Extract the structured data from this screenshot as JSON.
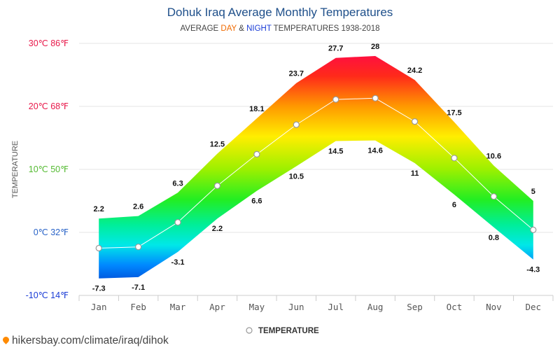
{
  "chart_data": {
    "type": "area",
    "title": "Dohuk Iraq Average Monthly Temperatures",
    "subtitle_prefix": "AVERAGE ",
    "subtitle_day": "DAY",
    "subtitle_amp": " & ",
    "subtitle_night": "NIGHT",
    "subtitle_suffix": " TEMPERATURES 1938-2018",
    "ylabel": "TEMPERATURE",
    "categories": [
      "Jan",
      "Feb",
      "Mar",
      "Apr",
      "May",
      "Jun",
      "Jul",
      "Aug",
      "Sep",
      "Oct",
      "Nov",
      "Dec"
    ],
    "series": [
      {
        "name": "DAY",
        "values": [
          2.2,
          2.6,
          6.3,
          12.5,
          18.1,
          23.7,
          27.7,
          28,
          24.2,
          17.5,
          10.6,
          5
        ]
      },
      {
        "name": "NIGHT",
        "values": [
          -7.3,
          -7.1,
          -3.1,
          2.2,
          6.6,
          10.5,
          14.5,
          14.6,
          11,
          6,
          0.8,
          -4.3
        ]
      },
      {
        "name": "TEMPERATURE",
        "values": [
          -2.5,
          -2.3,
          1.6,
          7.4,
          12.4,
          17.1,
          21.1,
          21.3,
          17.6,
          11.8,
          5.7,
          0.4
        ]
      }
    ],
    "yticks": [
      {
        "value": 30,
        "label": "30℃ 86℉",
        "color": "#e8184a"
      },
      {
        "value": 20,
        "label": "20℃ 68℉",
        "color": "#e8184a"
      },
      {
        "value": 10,
        "label": "10℃ 50℉",
        "color": "#55bb33"
      },
      {
        "value": 0,
        "label": "0℃ 32℉",
        "color": "#2a64c8"
      },
      {
        "value": -10,
        "label": "-10℃ 14℉",
        "color": "#1a3cd6"
      }
    ],
    "ylim": [
      -10,
      30
    ],
    "grid": true,
    "legend": {
      "position": "bottom",
      "label": "TEMPERATURE"
    }
  },
  "footer": {
    "url": "hikersbay.com/climate/iraq/dihok"
  }
}
